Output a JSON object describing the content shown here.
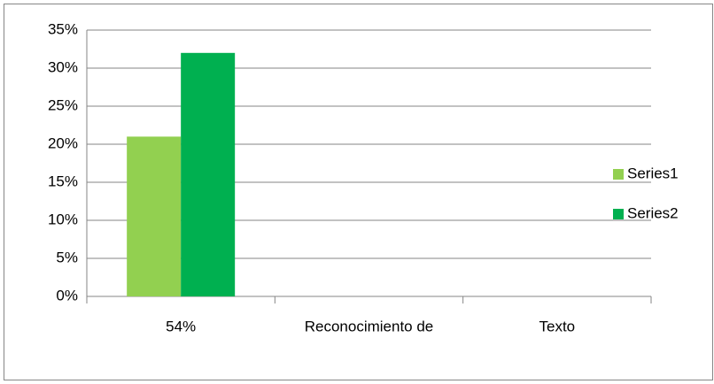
{
  "chart_data": {
    "type": "bar",
    "categories": [
      "54%",
      "Reconocimiento de",
      "Texto"
    ],
    "series": [
      {
        "name": "Series1",
        "color": "#92d050",
        "values": [
          21,
          null,
          null
        ]
      },
      {
        "name": "Series2",
        "color": "#00b050",
        "values": [
          32,
          null,
          null
        ]
      }
    ],
    "ylim": [
      0,
      35
    ],
    "yticks": [
      {
        "value": 0,
        "label": "0%"
      },
      {
        "value": 5,
        "label": "5%"
      },
      {
        "value": 10,
        "label": "10%"
      },
      {
        "value": 15,
        "label": "15%"
      },
      {
        "value": 20,
        "label": "20%"
      },
      {
        "value": 25,
        "label": "25%"
      },
      {
        "value": 30,
        "label": "30%"
      },
      {
        "value": 35,
        "label": "35%"
      }
    ],
    "grid": true,
    "legend": "right"
  }
}
